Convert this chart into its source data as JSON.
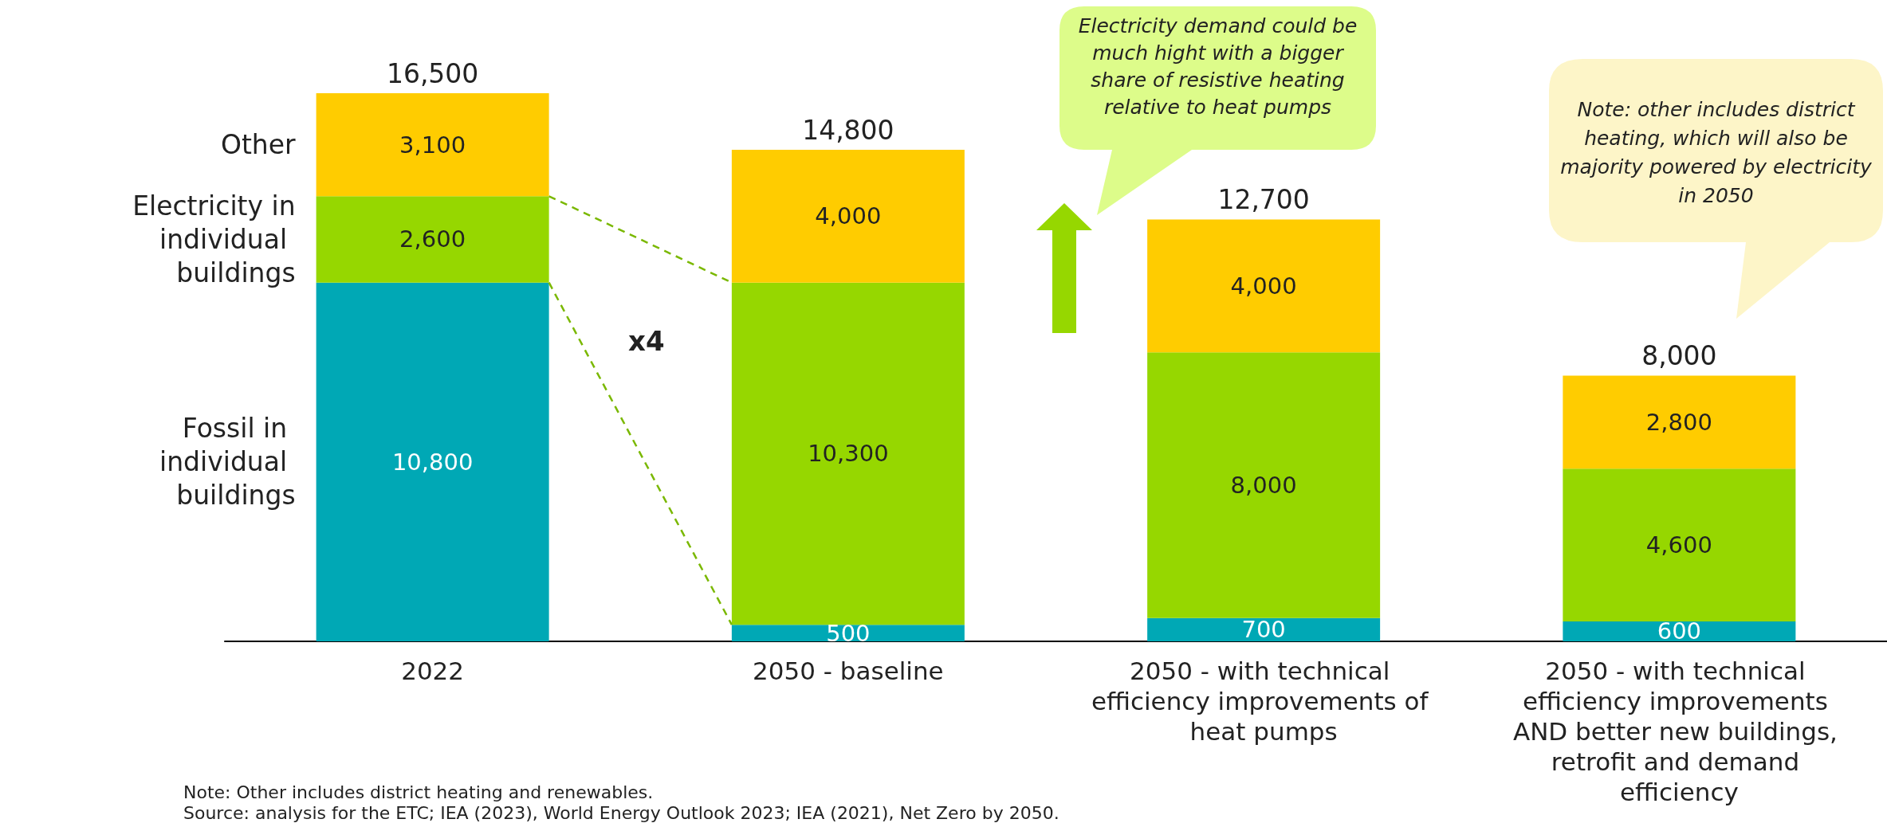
{
  "chart_data": {
    "type": "bar",
    "stacked": true,
    "legend": false,
    "categories": [
      "2022",
      "2050 - baseline",
      "2050 - with technical efficiency improvements of heat pumps",
      "2050 - with technical efficiency improvements AND better new buildings, retrofit and demand efficiency"
    ],
    "series": [
      {
        "name": "Fossil in individual buildings",
        "color": "#00a8b5",
        "values": [
          10800,
          500,
          700,
          600
        ],
        "value_labels": [
          "10,800",
          "500",
          "700",
          "600"
        ]
      },
      {
        "name": "Electricity in individual buildings",
        "color": "#96d700",
        "values": [
          2600,
          10300,
          8000,
          4600
        ],
        "value_labels": [
          "2,600",
          "10,300",
          "8,000",
          "4,600"
        ]
      },
      {
        "name": "Other",
        "color": "#ffcc00",
        "values": [
          3100,
          4000,
          4000,
          2800
        ],
        "value_labels": [
          "3,100",
          "4,000",
          "4,000",
          "2,800"
        ]
      }
    ],
    "totals": [
      "16,500",
      "14,800",
      "12,700",
      "8,000"
    ],
    "annotations": [
      "Electricity demand could be much hight with a bigger share of resistive heating relative to heat pumps",
      "Note: other includes district heating, which will also be majority powered by electricity in 2050",
      "x4",
      "Note: Other includes district heating and renewables.",
      "Source: analysis for the ETC; IEA (2023), World Energy Outlook 2023; IEA (2021), Net Zero by 2050."
    ]
  }
}
